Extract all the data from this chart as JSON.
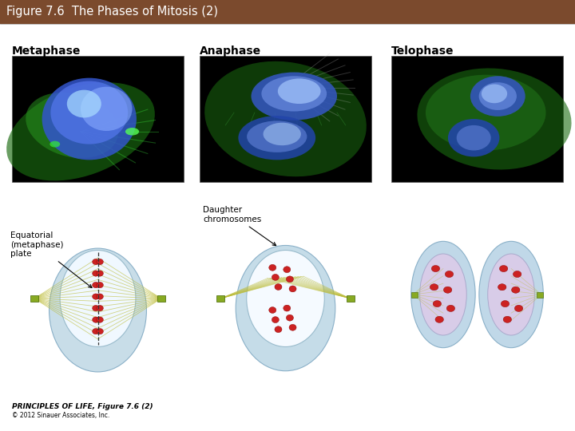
{
  "title": "Figure 7.6  The Phases of Mitosis (2)",
  "title_bg_color": "#7B4A2D",
  "title_text_color": "#FFFFFF",
  "title_fontsize": 10.5,
  "bg_color": "#FFFFFF",
  "phases": [
    "Metaphase",
    "Anaphase",
    "Telophase"
  ],
  "phase_label_fontsize": 10,
  "footer_text1": "PRINCIPLES OF LIFE, Figure 7.6 (2)",
  "footer_text2": "© 2012 Sinauer Associates, Inc.",
  "annotation1_text": "Equatorial\n(metaphase)\nplate",
  "annotation2_text": "Daughter\nchromosomes"
}
